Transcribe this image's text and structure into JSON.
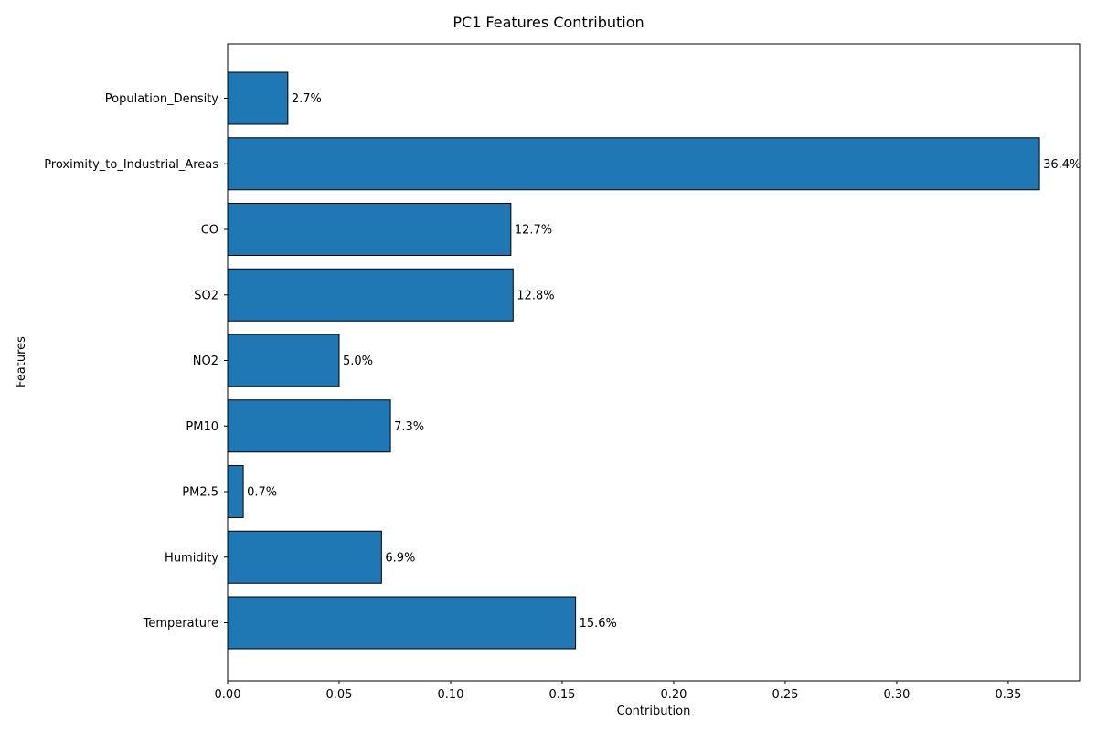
{
  "chart_data": {
    "type": "bar",
    "orientation": "horizontal",
    "title": "PC1 Features Contribution",
    "xlabel": "Contribution",
    "ylabel": "Features",
    "categories": [
      "Temperature",
      "Humidity",
      "PM2.5",
      "PM10",
      "NO2",
      "SO2",
      "CO",
      "Proximity_to_Industrial_Areas",
      "Population_Density"
    ],
    "values": [
      0.156,
      0.069,
      0.007,
      0.073,
      0.05,
      0.128,
      0.127,
      0.364,
      0.027
    ],
    "labels": [
      "15.6%",
      "6.9%",
      "0.7%",
      "7.3%",
      "5.0%",
      "12.8%",
      "12.7%",
      "36.4%",
      "2.7%"
    ],
    "xlim": [
      0,
      0.382
    ],
    "xticks": [
      0.0,
      0.05,
      0.1,
      0.15,
      0.2,
      0.25,
      0.3,
      0.35
    ],
    "xtick_labels": [
      "0.00",
      "0.05",
      "0.10",
      "0.15",
      "0.20",
      "0.25",
      "0.30",
      "0.35"
    ],
    "grid": false,
    "bar_color": "#1f77b4",
    "edge_color": "#000000"
  }
}
